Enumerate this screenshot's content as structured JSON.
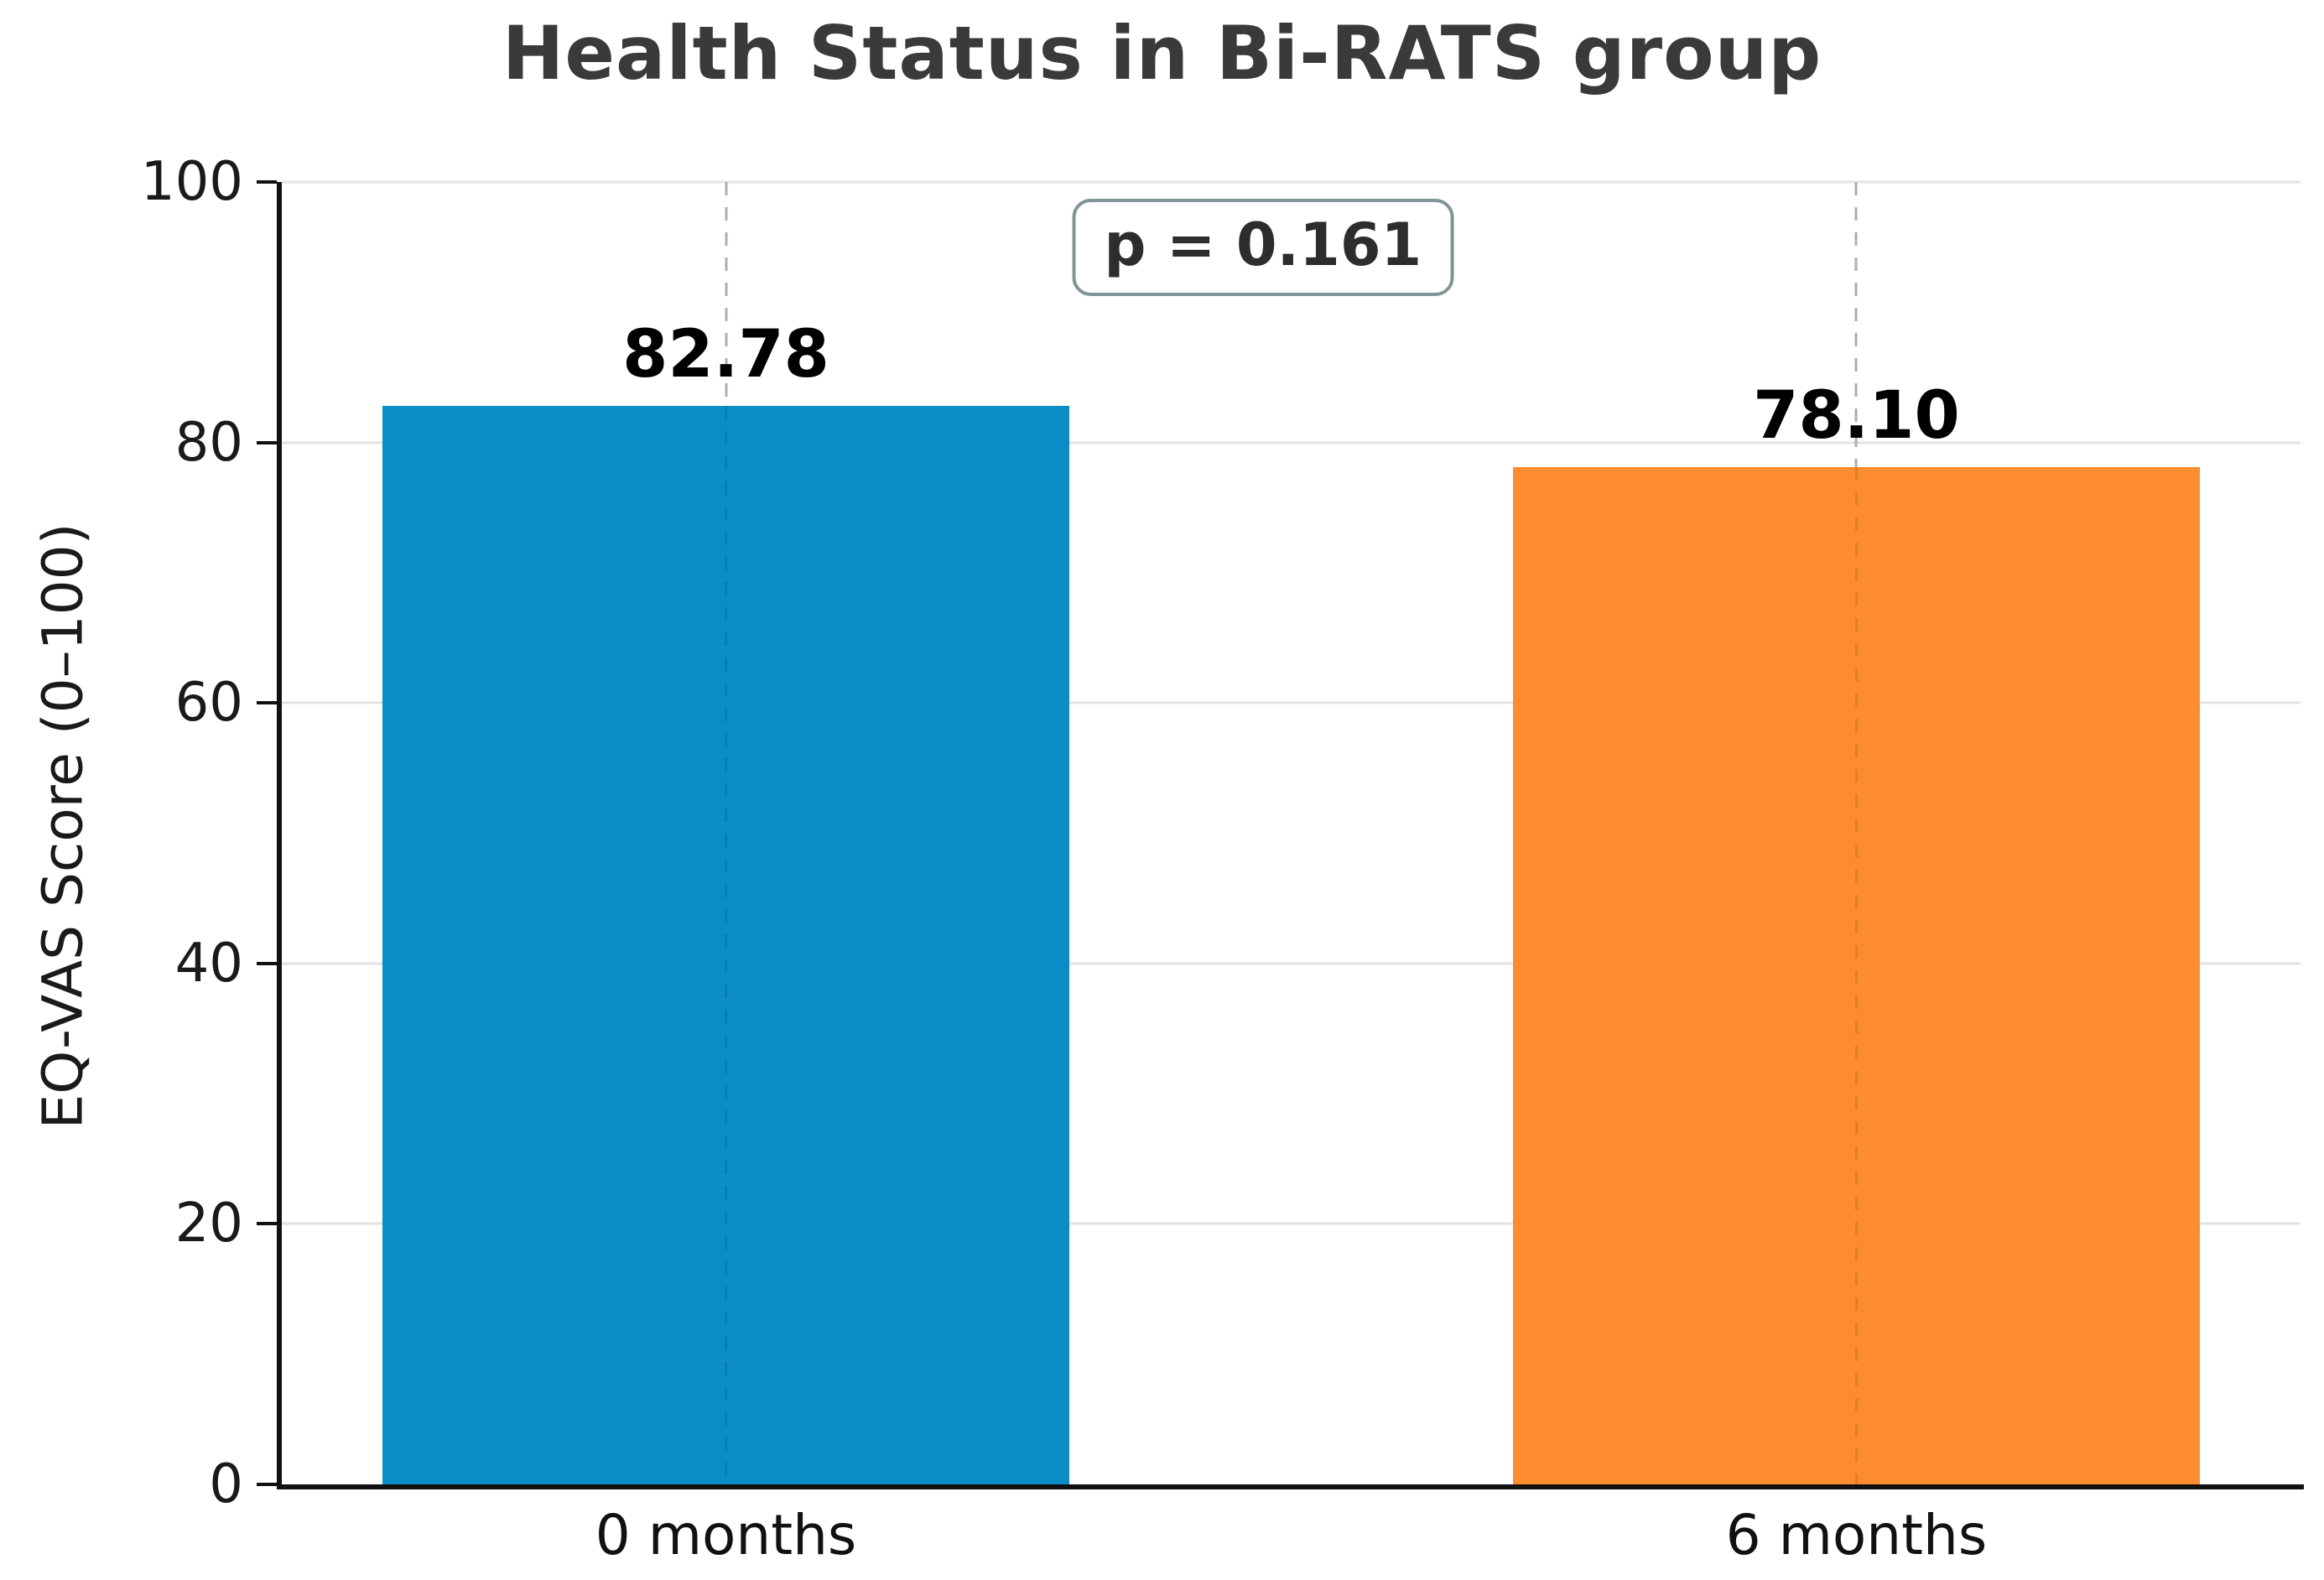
{
  "figure": {
    "title": "Health Status in Bi-RATS group"
  },
  "chart_data": {
    "type": "bar",
    "title": "Health Status in Bi-RATS group",
    "categories": [
      "0 months",
      "6 months"
    ],
    "values": [
      82.78,
      78.1
    ],
    "value_labels": [
      "82.78",
      "78.10"
    ],
    "series_colors": [
      "#0a8cc6",
      "#fc8c2e"
    ],
    "xlabel": "",
    "ylabel": "EQ-VAS Score (0–100)",
    "ylim": [
      0,
      100
    ],
    "yticks": [
      0,
      20,
      40,
      60,
      80,
      100
    ],
    "grid": {
      "horizontal": "solid-light-gray",
      "vertical": "dashed-at-bar-centers"
    },
    "legend_position": "none",
    "annotation": {
      "text": "p = 0.161",
      "border_color": "#7e9695",
      "position": "top-center"
    }
  }
}
